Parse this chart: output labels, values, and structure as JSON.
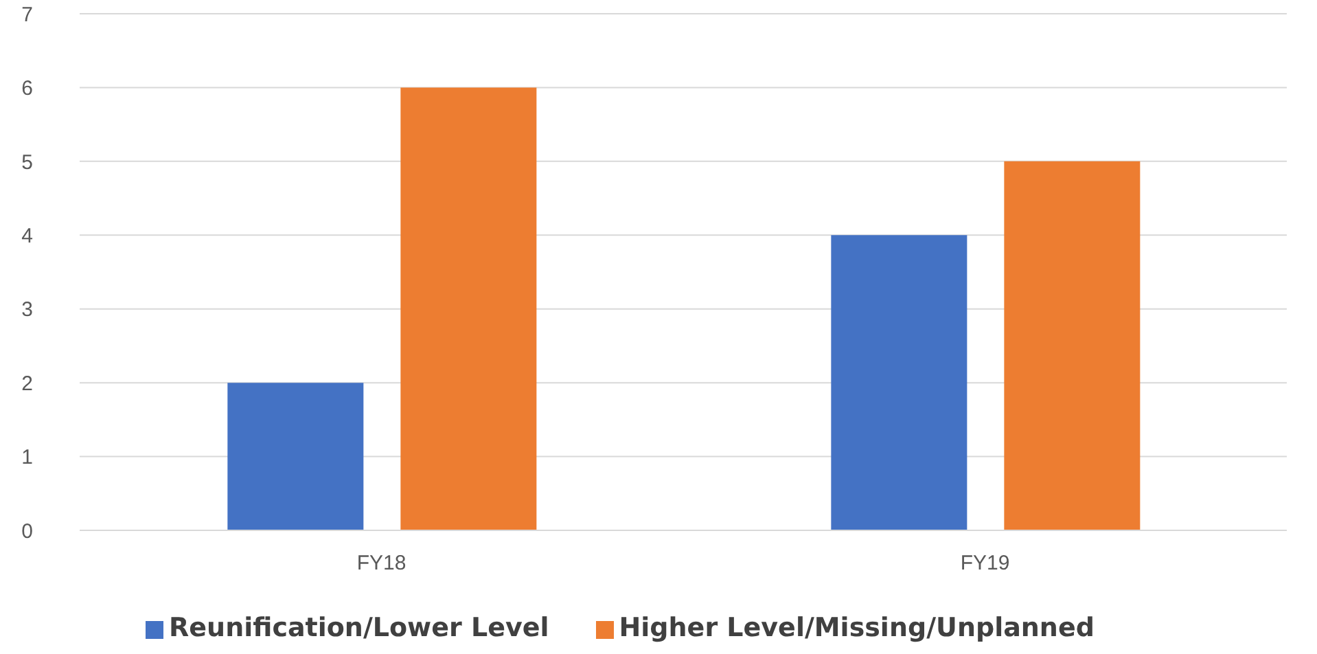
{
  "chart_data": {
    "type": "bar",
    "categories": [
      "FY18",
      "FY19"
    ],
    "series": [
      {
        "name": "Reunification/Lower Level",
        "color": "#4472c4",
        "values": [
          2,
          4
        ]
      },
      {
        "name": "Higher Level/Missing/Unplanned",
        "color": "#ed7d31",
        "values": [
          6,
          5
        ]
      }
    ],
    "ylim": [
      0,
      7
    ],
    "yticks": [
      0,
      1,
      2,
      3,
      4,
      5,
      6,
      7
    ],
    "grid": "y",
    "legend": "bottom"
  }
}
